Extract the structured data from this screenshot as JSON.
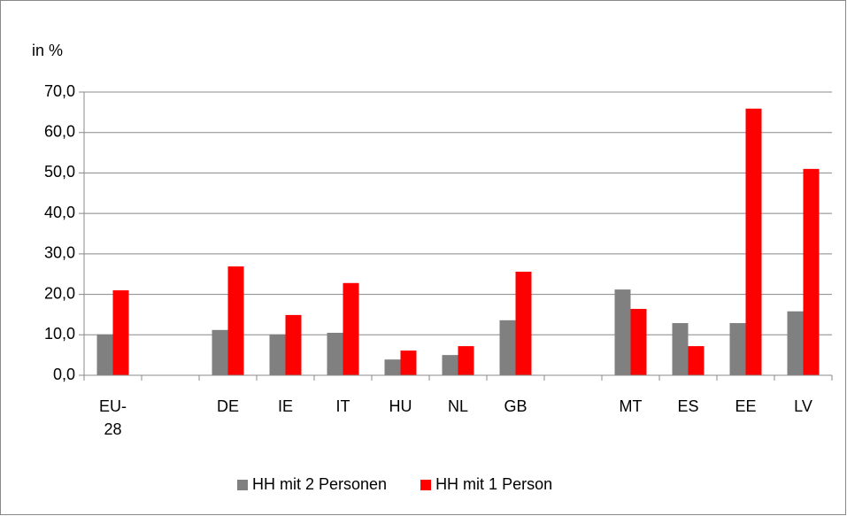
{
  "chart_data": {
    "type": "bar",
    "y_label": "in %",
    "categories": [
      "EU-28",
      null,
      "DE",
      "IE",
      "IT",
      "HU",
      "NL",
      "GB",
      null,
      "MT",
      "ES",
      "EE",
      "LV"
    ],
    "series": [
      {
        "name": "HH mit 2 Personen",
        "color": "#808080",
        "values": [
          10.1,
          null,
          11.2,
          10.1,
          10.5,
          3.9,
          5.0,
          13.6,
          null,
          21.2,
          12.9,
          12.9,
          15.8
        ]
      },
      {
        "name": "HH mit 1 Person",
        "color": "#ff0000",
        "values": [
          21.0,
          null,
          26.9,
          14.9,
          22.8,
          6.1,
          7.2,
          25.6,
          null,
          16.4,
          7.2,
          65.9,
          51.0
        ]
      }
    ],
    "ylim": [
      0,
      70
    ],
    "yticks": [
      {
        "value": 0,
        "label": "0,0"
      },
      {
        "value": 10,
        "label": "10,0"
      },
      {
        "value": 20,
        "label": "20,0"
      },
      {
        "value": 30,
        "label": "30,0"
      },
      {
        "value": 40,
        "label": "40,0"
      },
      {
        "value": 50,
        "label": "50,0"
      },
      {
        "value": 60,
        "label": "60,0"
      },
      {
        "value": 70,
        "label": "70,0"
      }
    ],
    "grid": true,
    "legend": "bottom"
  }
}
